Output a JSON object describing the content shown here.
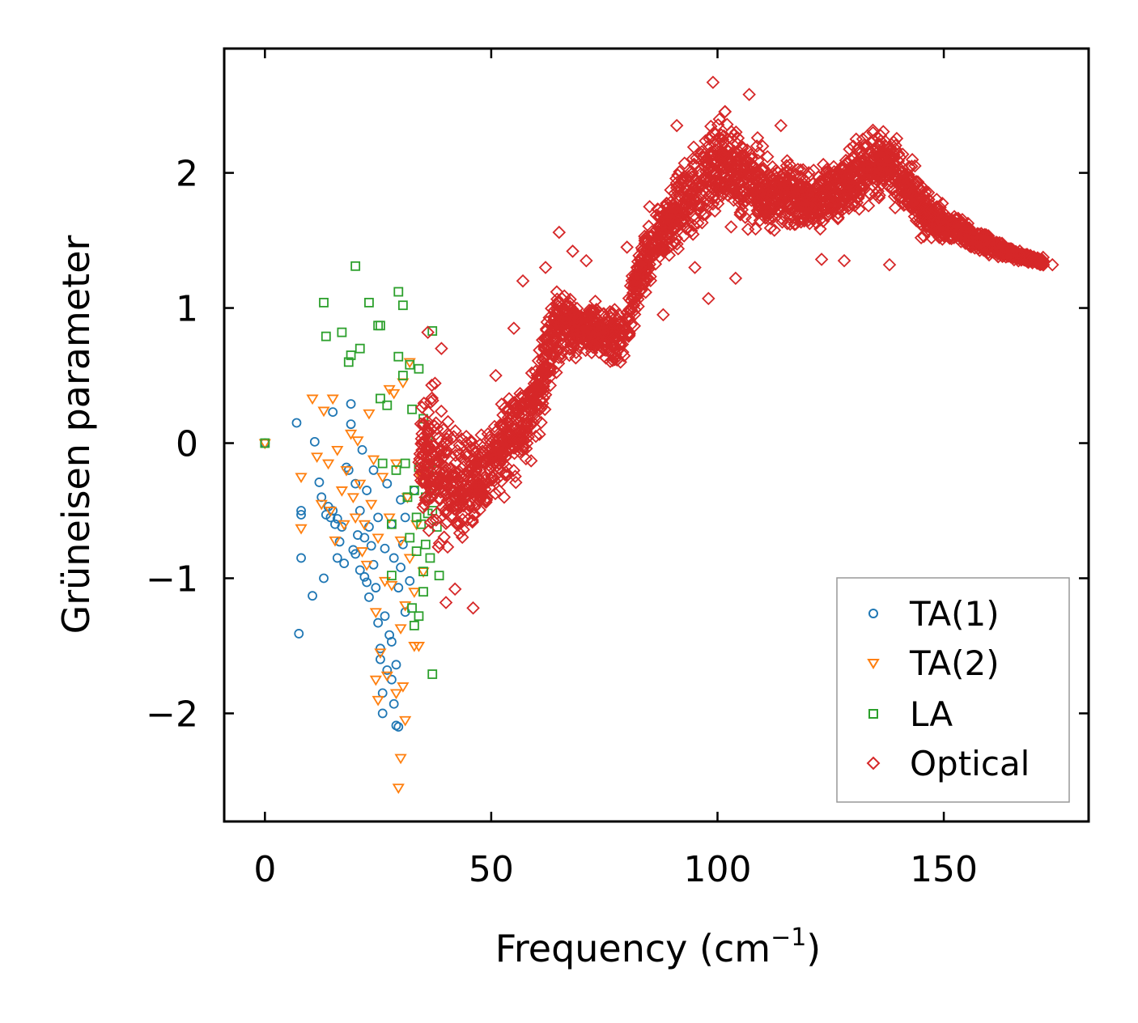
{
  "chart_data": {
    "type": "scatter",
    "xlabel_main": "Frequency (cm",
    "xlabel_sup": "−1",
    "xlabel_close": ")",
    "ylabel": "Grüneisen parameter",
    "xlim": [
      -9,
      182
    ],
    "ylim": [
      -2.8,
      2.92
    ],
    "xticks": [
      0,
      50,
      100,
      150
    ],
    "xtick_labels": [
      "0",
      "50",
      "100",
      "150"
    ],
    "yticks": [
      -2,
      -1,
      0,
      1,
      2
    ],
    "ytick_labels": [
      "−2",
      "−1",
      "0",
      "1",
      "2"
    ],
    "legend_position": "lower-right",
    "series": [
      {
        "name": "TA(1)",
        "marker": "circle",
        "color": "#1f77b4",
        "points": [
          [
            0,
            0
          ],
          [
            7,
            0.15
          ],
          [
            7.5,
            -1.41
          ],
          [
            8,
            -0.5
          ],
          [
            8,
            -0.53
          ],
          [
            8,
            -0.85
          ],
          [
            10.5,
            -1.13
          ],
          [
            11,
            0.01
          ],
          [
            12,
            -0.29
          ],
          [
            12.5,
            -0.4
          ],
          [
            13,
            -1.0
          ],
          [
            13.5,
            -0.53
          ],
          [
            14,
            -0.47
          ],
          [
            14.5,
            -0.55
          ],
          [
            15,
            0.23
          ],
          [
            15,
            -0.5
          ],
          [
            15.5,
            -0.6
          ],
          [
            16,
            -0.85
          ],
          [
            16,
            -0.56
          ],
          [
            16.5,
            -0.73
          ],
          [
            17,
            -0.62
          ],
          [
            17.5,
            -0.89
          ],
          [
            18,
            -0.18
          ],
          [
            18.5,
            -0.2
          ],
          [
            19,
            0.29
          ],
          [
            19,
            0.14
          ],
          [
            19.5,
            -0.79
          ],
          [
            20,
            -0.82
          ],
          [
            20,
            -0.3
          ],
          [
            20.5,
            -0.68
          ],
          [
            21,
            -0.94
          ],
          [
            21,
            -0.5
          ],
          [
            21.5,
            -0.05
          ],
          [
            22,
            -0.7
          ],
          [
            22,
            -0.99
          ],
          [
            22.5,
            -1.03
          ],
          [
            22.5,
            -0.35
          ],
          [
            23,
            -0.62
          ],
          [
            23,
            -1.14
          ],
          [
            23.5,
            -0.76
          ],
          [
            24,
            -0.9
          ],
          [
            24,
            -0.2
          ],
          [
            24.5,
            -1.07
          ],
          [
            25,
            -1.33
          ],
          [
            25,
            -0.55
          ],
          [
            25.5,
            -1.52
          ],
          [
            25.5,
            -1.6
          ],
          [
            26,
            -1.85
          ],
          [
            26,
            -2.0
          ],
          [
            26.5,
            -1.28
          ],
          [
            26.5,
            -0.78
          ],
          [
            27,
            -1.68
          ],
          [
            27,
            -0.3
          ],
          [
            27.5,
            -1.42
          ],
          [
            28,
            -1.47
          ],
          [
            28,
            -1.75
          ],
          [
            28,
            -0.6
          ],
          [
            28.5,
            -1.93
          ],
          [
            28.5,
            -0.85
          ],
          [
            29,
            -2.09
          ],
          [
            29,
            -1.64
          ],
          [
            29.5,
            -2.1
          ],
          [
            29.5,
            -1.07
          ],
          [
            30,
            -0.42
          ],
          [
            30,
            -0.92
          ],
          [
            30.5,
            -0.75
          ],
          [
            31,
            -1.25
          ],
          [
            31,
            -0.55
          ],
          [
            32,
            -1.02
          ],
          [
            33,
            -0.35
          ]
        ]
      },
      {
        "name": "TA(2)",
        "marker": "triangle",
        "color": "#ff7f0e",
        "points": [
          [
            0,
            0
          ],
          [
            8,
            -0.63
          ],
          [
            8,
            -0.25
          ],
          [
            10.5,
            0.33
          ],
          [
            11.5,
            -0.1
          ],
          [
            12.5,
            -0.45
          ],
          [
            13,
            0.24
          ],
          [
            14,
            -0.15
          ],
          [
            14.5,
            -0.5
          ],
          [
            15,
            0.33
          ],
          [
            15.5,
            -0.72
          ],
          [
            16,
            -0.05
          ],
          [
            17,
            -0.35
          ],
          [
            17.5,
            -0.6
          ],
          [
            18,
            -0.2
          ],
          [
            19,
            0.07
          ],
          [
            19.5,
            -0.4
          ],
          [
            20,
            -0.55
          ],
          [
            20.5,
            0.02
          ],
          [
            21,
            -0.3
          ],
          [
            21.5,
            -0.8
          ],
          [
            22,
            -0.6
          ],
          [
            22.5,
            -0.9
          ],
          [
            23,
            0.22
          ],
          [
            23.5,
            -0.45
          ],
          [
            24,
            -0.12
          ],
          [
            24.5,
            -1.25
          ],
          [
            24.5,
            -1.75
          ],
          [
            25,
            -0.7
          ],
          [
            25,
            -1.9
          ],
          [
            25.5,
            -1.55
          ],
          [
            26,
            -0.25
          ],
          [
            26.5,
            -1.02
          ],
          [
            27,
            -1.72
          ],
          [
            27.5,
            0.4
          ],
          [
            27.5,
            -0.55
          ],
          [
            28,
            -1.05
          ],
          [
            28.5,
            0.37
          ],
          [
            29,
            -0.15
          ],
          [
            29,
            -1.85
          ],
          [
            29.5,
            -2.55
          ],
          [
            30,
            -2.33
          ],
          [
            30,
            -1.37
          ],
          [
            30,
            -0.72
          ],
          [
            30.5,
            0.45
          ],
          [
            30.5,
            -1.8
          ],
          [
            31,
            -1.2
          ],
          [
            31,
            -2.05
          ],
          [
            31.5,
            -0.4
          ],
          [
            32,
            0.6
          ],
          [
            32,
            -0.85
          ],
          [
            33,
            -1.5
          ],
          [
            33,
            -1.1
          ],
          [
            33.5,
            -0.6
          ],
          [
            34,
            -1.5
          ],
          [
            34.5,
            -0.25
          ],
          [
            35,
            -0.95
          ]
        ]
      },
      {
        "name": "LA",
        "marker": "square",
        "color": "#2ca02c",
        "points": [
          [
            0,
            0
          ],
          [
            13,
            1.04
          ],
          [
            13.5,
            0.79
          ],
          [
            17,
            0.82
          ],
          [
            18.5,
            0.6
          ],
          [
            19,
            0.65
          ],
          [
            20,
            1.31
          ],
          [
            21,
            0.7
          ],
          [
            23,
            1.04
          ],
          [
            25,
            0.87
          ],
          [
            25.5,
            0.87
          ],
          [
            25.5,
            0.33
          ],
          [
            26,
            -0.15
          ],
          [
            27,
            0.28
          ],
          [
            28,
            -0.6
          ],
          [
            28,
            -0.98
          ],
          [
            29,
            -0.2
          ],
          [
            29.5,
            1.12
          ],
          [
            29.5,
            0.64
          ],
          [
            30.5,
            1.02
          ],
          [
            30.5,
            0.5
          ],
          [
            31,
            -0.15
          ],
          [
            31.5,
            -0.4
          ],
          [
            32,
            0.58
          ],
          [
            32,
            -0.7
          ],
          [
            32.5,
            -1.22
          ],
          [
            32.5,
            0.25
          ],
          [
            33,
            -1.35
          ],
          [
            33,
            -0.35
          ],
          [
            33.5,
            -0.55
          ],
          [
            33.5,
            -0.8
          ],
          [
            34,
            -1.28
          ],
          [
            34,
            0.55
          ],
          [
            34,
            -0.18
          ],
          [
            34.5,
            -0.6
          ],
          [
            35,
            0.18
          ],
          [
            35,
            -0.95
          ],
          [
            35,
            -1.1
          ],
          [
            35.5,
            -0.4
          ],
          [
            35.5,
            -0.75
          ],
          [
            36,
            -0.52
          ],
          [
            36,
            0.02
          ],
          [
            36.5,
            -0.15
          ],
          [
            36.5,
            -0.85
          ],
          [
            37,
            0.83
          ],
          [
            37,
            -1.71
          ],
          [
            37,
            -0.5
          ],
          [
            37.5,
            -0.35
          ],
          [
            38,
            -0.62
          ],
          [
            38,
            -0.2
          ],
          [
            38.5,
            -0.98
          ]
        ]
      },
      {
        "name": "Optical",
        "marker": "diamond",
        "color": "#d62728",
        "envelope": {
          "x": [
            34,
            37,
            40,
            43,
            46,
            49,
            52,
            55,
            58,
            61,
            64,
            67,
            70,
            73,
            76,
            79,
            82,
            85,
            88,
            91,
            94,
            97,
            100,
            103,
            106,
            109,
            112,
            115,
            118,
            121,
            124,
            127,
            130,
            133,
            136,
            139,
            142,
            145,
            148,
            151,
            154,
            157,
            160,
            163,
            166,
            169,
            172
          ],
          "lo": [
            -0.55,
            -0.85,
            -0.95,
            -0.88,
            -0.78,
            -0.65,
            -0.5,
            -0.35,
            -0.25,
            0.0,
            0.45,
            0.55,
            0.62,
            0.58,
            0.52,
            0.45,
            0.9,
            1.15,
            1.3,
            1.35,
            1.45,
            1.55,
            1.6,
            1.62,
            1.55,
            1.5,
            1.45,
            1.5,
            1.55,
            1.5,
            1.5,
            1.6,
            1.65,
            1.7,
            1.75,
            1.65,
            1.55,
            1.5,
            1.45,
            1.45,
            1.45,
            1.4,
            1.38,
            1.35,
            1.33,
            1.32,
            1.3
          ],
          "hi": [
            0.35,
            0.6,
            0.4,
            0.3,
            0.2,
            0.25,
            0.35,
            0.45,
            0.6,
            0.95,
            1.2,
            1.2,
            1.05,
            1.05,
            1.1,
            1.05,
            1.45,
            1.7,
            1.85,
            2.1,
            2.25,
            2.4,
            2.55,
            2.5,
            2.4,
            2.3,
            2.2,
            2.15,
            2.1,
            2.1,
            2.15,
            2.2,
            2.3,
            2.35,
            2.4,
            2.4,
            2.2,
            2.0,
            1.85,
            1.75,
            1.68,
            1.6,
            1.55,
            1.5,
            1.45,
            1.42,
            1.38
          ]
        },
        "count": 3000,
        "outliers": [
          [
            36,
            0.82
          ],
          [
            39,
            0.7
          ],
          [
            40,
            -1.18
          ],
          [
            42,
            -1.08
          ],
          [
            46,
            -1.22
          ],
          [
            51,
            0.5
          ],
          [
            55,
            0.85
          ],
          [
            57,
            1.2
          ],
          [
            62,
            1.3
          ],
          [
            65,
            1.56
          ],
          [
            68,
            1.42
          ],
          [
            71,
            1.35
          ],
          [
            73,
            1.05
          ],
          [
            80,
            1.45
          ],
          [
            85,
            1.75
          ],
          [
            88,
            0.95
          ],
          [
            91,
            2.35
          ],
          [
            95,
            1.3
          ],
          [
            98,
            1.07
          ],
          [
            99,
            2.67
          ],
          [
            103,
            1.6
          ],
          [
            104,
            1.22
          ],
          [
            107,
            2.58
          ],
          [
            114,
            2.35
          ],
          [
            123,
            1.36
          ],
          [
            128,
            1.35
          ],
          [
            138,
            1.32
          ],
          [
            145,
            1.52
          ],
          [
            162,
            1.38
          ],
          [
            174,
            1.32
          ]
        ]
      }
    ]
  }
}
